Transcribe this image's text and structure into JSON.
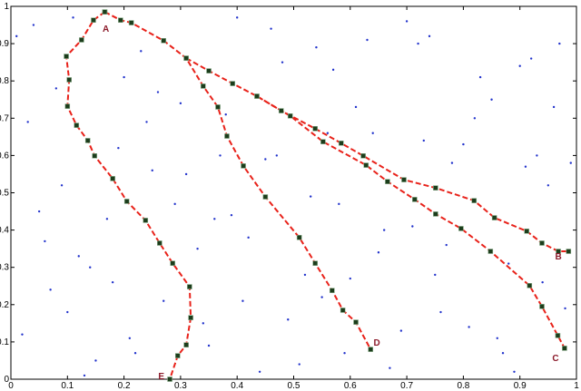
{
  "chart_data": {
    "type": "scatter",
    "xlim": [
      0,
      1
    ],
    "ylim": [
      0,
      1
    ],
    "xticks": [
      0,
      0.1,
      0.2,
      0.3,
      0.4,
      0.5,
      0.6,
      0.7,
      0.8,
      0.9,
      1
    ],
    "yticks": [
      0,
      0.1,
      0.2,
      0.3,
      0.4,
      0.5,
      0.6,
      0.7,
      0.8,
      0.9,
      1
    ],
    "points": {
      "color": "#2233cc",
      "x": [
        0.02,
        0.05,
        0.08,
        0.12,
        0.15,
        0.19,
        0.23,
        0.27,
        0.31,
        0.35,
        0.38,
        0.42,
        0.46,
        0.49,
        0.53,
        0.57,
        0.6,
        0.64,
        0.67,
        0.71,
        0.74,
        0.78,
        0.81,
        0.85,
        0.88,
        0.92,
        0.95,
        0.98,
        0.03,
        0.07,
        0.11,
        0.17,
        0.21,
        0.26,
        0.33,
        0.37,
        0.44,
        0.48,
        0.52,
        0.58,
        0.63,
        0.69,
        0.73,
        0.77,
        0.83,
        0.87,
        0.91,
        0.96,
        0.04,
        0.09,
        0.14,
        0.2,
        0.24,
        0.29,
        0.34,
        0.4,
        0.45,
        0.51,
        0.55,
        0.61,
        0.66,
        0.72,
        0.76,
        0.8,
        0.86,
        0.9,
        0.94,
        0.99,
        0.06,
        0.13,
        0.18,
        0.25,
        0.3,
        0.36,
        0.41,
        0.47,
        0.54,
        0.59,
        0.65,
        0.7,
        0.75,
        0.82,
        0.89,
        0.93,
        0.97,
        0.01,
        0.1,
        0.22,
        0.39,
        0.56
      ],
      "y": [
        0.12,
        0.45,
        0.78,
        0.33,
        0.05,
        0.62,
        0.88,
        0.21,
        0.55,
        0.09,
        0.71,
        0.38,
        0.94,
        0.16,
        0.49,
        0.83,
        0.27,
        0.66,
        0.03,
        0.41,
        0.92,
        0.58,
        0.14,
        0.75,
        0.31,
        0.86,
        0.52,
        0.19,
        0.69,
        0.24,
        0.97,
        0.43,
        0.11,
        0.77,
        0.35,
        0.6,
        0.02,
        0.85,
        0.28,
        0.47,
        0.91,
        0.13,
        0.64,
        0.36,
        0.81,
        0.07,
        0.57,
        0.73,
        0.95,
        0.52,
        0.3,
        0.81,
        0.69,
        0.47,
        0.15,
        0.97,
        0.59,
        0.04,
        0.22,
        0.73,
        0.4,
        0.9,
        0.18,
        0.63,
        0.11,
        0.84,
        0.26,
        0.58,
        0.37,
        0.01,
        0.26,
        0.56,
        0.74,
        0.43,
        0.21,
        0.6,
        0.89,
        0.07,
        0.34,
        0.96,
        0.28,
        0.7,
        0.02,
        0.6,
        0.9,
        0.92,
        0.18,
        0.07,
        0.44,
        0.66
      ]
    },
    "paths": [
      {
        "color": "#e8221a",
        "marker_color": "#1c3d1c",
        "x": [
          0.166,
          0.146,
          0.125,
          0.098,
          0.103,
          0.1,
          0.116,
          0.136,
          0.148,
          0.18,
          0.205,
          0.238,
          0.263,
          0.286,
          0.316,
          0.318,
          0.31,
          0.295,
          0.281
        ],
        "y": [
          0.985,
          0.963,
          0.91,
          0.866,
          0.803,
          0.732,
          0.681,
          0.64,
          0.599,
          0.538,
          0.477,
          0.426,
          0.365,
          0.311,
          0.248,
          0.165,
          0.092,
          0.063,
          0
        ]
      },
      {
        "color": "#e8221a",
        "marker_color": "#1c3d1c",
        "x": [
          0.166,
          0.194,
          0.213,
          0.27,
          0.31,
          0.34,
          0.366,
          0.382,
          0.411,
          0.45,
          0.51,
          0.538,
          0.568,
          0.587,
          0.61,
          0.636
        ],
        "y": [
          0.985,
          0.963,
          0.956,
          0.908,
          0.861,
          0.786,
          0.73,
          0.652,
          0.572,
          0.489,
          0.38,
          0.311,
          0.238,
          0.185,
          0.153,
          0.08
        ]
      },
      {
        "color": "#e8221a",
        "marker_color": "#1c3d1c",
        "x": [
          0.31,
          0.35,
          0.392,
          0.435,
          0.478,
          0.538,
          0.584,
          0.623,
          0.695,
          0.751,
          0.819,
          0.855,
          0.912,
          0.939,
          0.968,
          0.986
        ],
        "y": [
          0.861,
          0.827,
          0.793,
          0.759,
          0.72,
          0.672,
          0.633,
          0.599,
          0.535,
          0.513,
          0.479,
          0.433,
          0.397,
          0.365,
          0.343,
          0.343
        ]
      },
      {
        "color": "#e8221a",
        "marker_color": "#1c3d1c",
        "x": [
          0.435,
          0.494,
          0.552,
          0.628,
          0.666,
          0.714,
          0.751,
          0.796,
          0.848,
          0.917,
          0.939,
          0.967,
          0.979
        ],
        "y": [
          0.759,
          0.706,
          0.637,
          0.574,
          0.53,
          0.482,
          0.443,
          0.404,
          0.343,
          0.251,
          0.195,
          0.117,
          0.083
        ]
      }
    ],
    "annotations": [
      {
        "text": "A",
        "x": 0.168,
        "y": 0.944
      },
      {
        "text": "B",
        "x": 0.968,
        "y": 0.333
      },
      {
        "text": "C",
        "x": 0.963,
        "y": 0.061
      },
      {
        "text": "D",
        "x": 0.647,
        "y": 0.102
      },
      {
        "text": "E",
        "x": 0.266,
        "y": 0.012
      }
    ]
  }
}
